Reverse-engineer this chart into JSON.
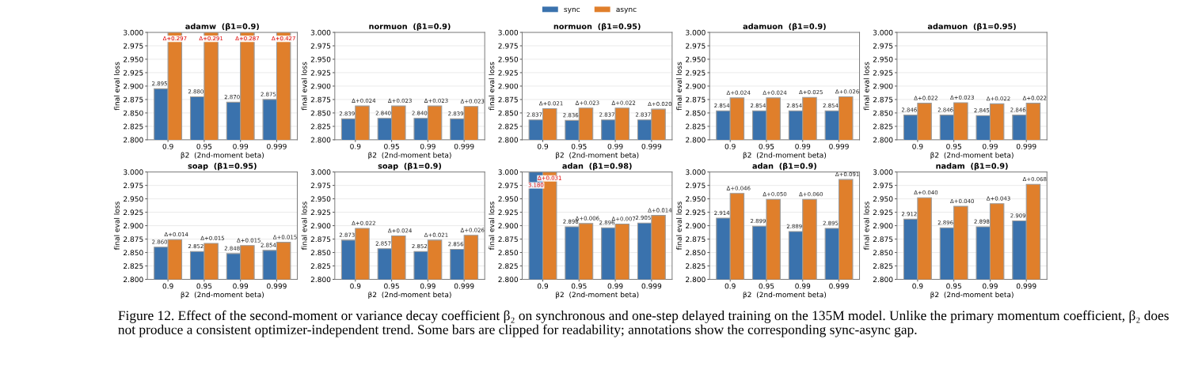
{
  "chart_data": [
    {
      "type": "bar",
      "title": "adamw  (β1=0.9)",
      "xlabel": "β2  (2nd-moment beta)",
      "ylabel": "final eval loss",
      "categories": [
        "0.9",
        "0.95",
        "0.99",
        "0.999"
      ],
      "legend": "top",
      "grid": "y",
      "ylim": [
        2.8,
        3.0
      ],
      "yticks": [
        {
          "value": 2.8,
          "label": "2.800"
        },
        {
          "value": 2.825,
          "label": "2.825"
        },
        {
          "value": 2.85,
          "label": "2.850"
        },
        {
          "value": 2.875,
          "label": "2.875"
        },
        {
          "value": 2.9,
          "label": "2.900"
        },
        {
          "value": 2.925,
          "label": "2.925"
        },
        {
          "value": 2.95,
          "label": "2.950"
        },
        {
          "value": 2.975,
          "label": "2.975"
        },
        {
          "value": 3.0,
          "label": "3.000"
        }
      ],
      "series": [
        {
          "name": "sync",
          "color": "#3a72ad",
          "values": [
            2.895,
            2.88,
            2.87,
            2.875
          ],
          "value_labels": [
            "2.895",
            "2.880",
            "2.870",
            "2.875"
          ]
        },
        {
          "name": "async",
          "color": "#e07f2b",
          "values": [
            3.0,
            3.0,
            3.0,
            3.0
          ],
          "value_labels": [
            "Δ+0.297",
            "Δ+0.291",
            "Δ+0.287",
            "Δ+0.427"
          ]
        }
      ],
      "annotations": [
        "Figure 12. Effect of the second-moment or variance decay coefficient β₂ on synchronous and one-step delayed training on the 135M model. Unlike the primary momentum coefficient, β₂ does not produce a consistent optimizer-independent trend. Some bars are clipped for readability; annotations show the corresponding sync-async gap."
      ]
    },
    {
      "type": "bar",
      "title": "normuon  (β1=0.9)",
      "xlabel": "β2  (2nd-moment beta)",
      "ylabel": "final eval loss",
      "categories": [
        "0.9",
        "0.95",
        "0.99",
        "0.999"
      ],
      "grid": "y",
      "ylim": [
        2.8,
        3.0
      ],
      "yticks": [
        {
          "value": 2.8,
          "label": "2.800"
        },
        {
          "value": 2.825,
          "label": "2.825"
        },
        {
          "value": 2.85,
          "label": "2.850"
        },
        {
          "value": 2.875,
          "label": "2.875"
        },
        {
          "value": 2.9,
          "label": "2.900"
        },
        {
          "value": 2.925,
          "label": "2.925"
        },
        {
          "value": 2.95,
          "label": "2.950"
        },
        {
          "value": 2.975,
          "label": "2.975"
        },
        {
          "value": 3.0,
          "label": "3.000"
        }
      ],
      "series": [
        {
          "color": "#3a72ad",
          "values": [
            2.839,
            2.84,
            2.84,
            2.839
          ],
          "value_labels": [
            "2.839",
            "2.840",
            "2.840",
            "2.839"
          ]
        },
        {
          "color": "#e07f2b",
          "values": [
            2.863,
            2.863,
            2.863,
            2.862
          ],
          "value_labels": [
            "Δ+0.024",
            "Δ+0.023",
            "Δ+0.023",
            "Δ+0.023"
          ]
        }
      ]
    },
    {
      "type": "bar",
      "title": "normuon  (β1=0.95)",
      "xlabel": "β2  (2nd-moment beta)",
      "ylabel": "final eval loss",
      "categories": [
        "0.9",
        "0.95",
        "0.99",
        "0.999"
      ],
      "grid": "y",
      "ylim": [
        2.8,
        3.0
      ],
      "yticks": [
        {
          "value": 2.8,
          "label": "2.800"
        },
        {
          "value": 2.825,
          "label": "2.825"
        },
        {
          "value": 2.85,
          "label": "2.850"
        },
        {
          "value": 2.875,
          "label": "2.875"
        },
        {
          "value": 2.9,
          "label": "2.900"
        },
        {
          "value": 2.925,
          "label": "2.925"
        },
        {
          "value": 2.95,
          "label": "2.950"
        },
        {
          "value": 2.975,
          "label": "2.975"
        },
        {
          "value": 3.0,
          "label": "3.000"
        }
      ],
      "series": [
        {
          "color": "#3a72ad",
          "values": [
            2.837,
            2.836,
            2.837,
            2.837
          ],
          "value_labels": [
            "2.837",
            "2.836",
            "2.837",
            "2.837"
          ]
        },
        {
          "color": "#e07f2b",
          "values": [
            2.858,
            2.859,
            2.859,
            2.857
          ],
          "value_labels": [
            "Δ+0.021",
            "Δ+0.023",
            "Δ+0.022",
            "Δ+0.020"
          ]
        }
      ]
    },
    {
      "type": "bar",
      "title": "adamuon  (β1=0.9)",
      "xlabel": "β2  (2nd-moment beta)",
      "ylabel": "final eval loss",
      "categories": [
        "0.9",
        "0.95",
        "0.99",
        "0.999"
      ],
      "grid": "y",
      "ylim": [
        2.8,
        3.0
      ],
      "yticks": [
        {
          "value": 2.8,
          "label": "2.800"
        },
        {
          "value": 2.825,
          "label": "2.825"
        },
        {
          "value": 2.85,
          "label": "2.850"
        },
        {
          "value": 2.875,
          "label": "2.875"
        },
        {
          "value": 2.9,
          "label": "2.900"
        },
        {
          "value": 2.925,
          "label": "2.925"
        },
        {
          "value": 2.95,
          "label": "2.950"
        },
        {
          "value": 2.975,
          "label": "2.975"
        },
        {
          "value": 3.0,
          "label": "3.000"
        }
      ],
      "series": [
        {
          "color": "#3a72ad",
          "values": [
            2.854,
            2.854,
            2.854,
            2.854
          ],
          "value_labels": [
            "2.854",
            "2.854",
            "2.854",
            "2.854"
          ]
        },
        {
          "color": "#e07f2b",
          "values": [
            2.878,
            2.878,
            2.879,
            2.88
          ],
          "value_labels": [
            "Δ+0.024",
            "Δ+0.024",
            "Δ+0.025",
            "Δ+0.026"
          ]
        }
      ]
    },
    {
      "type": "bar",
      "title": "adamuon  (β1=0.95)",
      "xlabel": "β2  (2nd-moment beta)",
      "ylabel": "final eval loss",
      "categories": [
        "0.9",
        "0.95",
        "0.99",
        "0.999"
      ],
      "grid": "y",
      "ylim": [
        2.8,
        3.0
      ],
      "yticks": [
        {
          "value": 2.8,
          "label": "2.800"
        },
        {
          "value": 2.825,
          "label": "2.825"
        },
        {
          "value": 2.85,
          "label": "2.850"
        },
        {
          "value": 2.875,
          "label": "2.875"
        },
        {
          "value": 2.9,
          "label": "2.900"
        },
        {
          "value": 2.925,
          "label": "2.925"
        },
        {
          "value": 2.95,
          "label": "2.950"
        },
        {
          "value": 2.975,
          "label": "2.975"
        },
        {
          "value": 3.0,
          "label": "3.000"
        }
      ],
      "series": [
        {
          "color": "#3a72ad",
          "values": [
            2.846,
            2.846,
            2.845,
            2.846
          ],
          "value_labels": [
            "2.846",
            "2.846",
            "2.845",
            "2.846"
          ]
        },
        {
          "color": "#e07f2b",
          "values": [
            2.868,
            2.869,
            2.867,
            2.868
          ],
          "value_labels": [
            "Δ+0.022",
            "Δ+0.023",
            "Δ+0.022",
            "Δ+0.022"
          ]
        }
      ]
    },
    {
      "type": "bar",
      "title": "soap  (β1=0.95)",
      "xlabel": "β2  (2nd-moment beta)",
      "ylabel": "final eval loss",
      "categories": [
        "0.9",
        "0.95",
        "0.99",
        "0.999"
      ],
      "grid": "y",
      "ylim": [
        2.8,
        3.0
      ],
      "yticks": [
        {
          "value": 2.8,
          "label": "2.800"
        },
        {
          "value": 2.825,
          "label": "2.825"
        },
        {
          "value": 2.85,
          "label": "2.850"
        },
        {
          "value": 2.875,
          "label": "2.875"
        },
        {
          "value": 2.9,
          "label": "2.900"
        },
        {
          "value": 2.925,
          "label": "2.925"
        },
        {
          "value": 2.95,
          "label": "2.950"
        },
        {
          "value": 2.975,
          "label": "2.975"
        },
        {
          "value": 3.0,
          "label": "3.000"
        }
      ],
      "series": [
        {
          "color": "#3a72ad",
          "values": [
            2.86,
            2.852,
            2.848,
            2.854
          ],
          "value_labels": [
            "2.860",
            "2.852",
            "2.848",
            "2.854"
          ]
        },
        {
          "color": "#e07f2b",
          "values": [
            2.874,
            2.867,
            2.863,
            2.869
          ],
          "value_labels": [
            "Δ+0.014",
            "Δ+0.015",
            "Δ+0.015",
            "Δ+0.015"
          ]
        }
      ]
    },
    {
      "type": "bar",
      "title": "soap  (β1=0.9)",
      "xlabel": "β2  (2nd-moment beta)",
      "ylabel": "final eval loss",
      "categories": [
        "0.9",
        "0.95",
        "0.99",
        "0.999"
      ],
      "grid": "y",
      "ylim": [
        2.8,
        3.0
      ],
      "yticks": [
        {
          "value": 2.8,
          "label": "2.800"
        },
        {
          "value": 2.825,
          "label": "2.825"
        },
        {
          "value": 2.85,
          "label": "2.850"
        },
        {
          "value": 2.875,
          "label": "2.875"
        },
        {
          "value": 2.9,
          "label": "2.900"
        },
        {
          "value": 2.925,
          "label": "2.925"
        },
        {
          "value": 2.95,
          "label": "2.950"
        },
        {
          "value": 2.975,
          "label": "2.975"
        },
        {
          "value": 3.0,
          "label": "3.000"
        }
      ],
      "series": [
        {
          "color": "#3a72ad",
          "values": [
            2.873,
            2.857,
            2.852,
            2.856
          ],
          "value_labels": [
            "2.873",
            "2.857",
            "2.852",
            "2.856"
          ]
        },
        {
          "color": "#e07f2b",
          "values": [
            2.895,
            2.881,
            2.873,
            2.882
          ],
          "value_labels": [
            "Δ+0.022",
            "Δ+0.024",
            "Δ+0.021",
            "Δ+0.026"
          ]
        }
      ]
    },
    {
      "type": "bar",
      "title": "adan  (β1=0.98)",
      "xlabel": "β2  (2nd-moment beta)",
      "ylabel": "final eval loss",
      "categories": [
        "0.9",
        "0.95",
        "0.99",
        "0.999"
      ],
      "grid": "y",
      "ylim": [
        2.8,
        3.0
      ],
      "yticks": [
        {
          "value": 2.8,
          "label": "2.800"
        },
        {
          "value": 2.825,
          "label": "2.825"
        },
        {
          "value": 2.85,
          "label": "2.850"
        },
        {
          "value": 2.875,
          "label": "2.875"
        },
        {
          "value": 2.9,
          "label": "2.900"
        },
        {
          "value": 2.925,
          "label": "2.925"
        },
        {
          "value": 2.95,
          "label": "2.950"
        },
        {
          "value": 2.975,
          "label": "2.975"
        },
        {
          "value": 3.0,
          "label": "3.000"
        }
      ],
      "series": [
        {
          "color": "#3a72ad",
          "values": [
            3.0,
            2.898,
            2.896,
            2.905
          ],
          "value_labels": [
            null,
            "2.898",
            "2.896",
            "2.905"
          ]
        },
        {
          "color": "#e07f2b",
          "values": [
            3.0,
            2.904,
            2.903,
            2.919
          ],
          "value_labels": [
            "Δ+0.031",
            "Δ+0.006",
            "Δ+0.007",
            "Δ+0.014"
          ]
        }
      ],
      "annotations": [
        {
          "text": "3.180",
          "x": "0.9",
          "y": 3.0
        }
      ]
    },
    {
      "type": "bar",
      "title": "adan  (β1=0.9)",
      "xlabel": "β2  (2nd-moment beta)",
      "ylabel": "final eval loss",
      "categories": [
        "0.9",
        "0.95",
        "0.99",
        "0.999"
      ],
      "grid": "y",
      "ylim": [
        2.8,
        3.0
      ],
      "yticks": [
        {
          "value": 2.8,
          "label": "2.800"
        },
        {
          "value": 2.825,
          "label": "2.825"
        },
        {
          "value": 2.85,
          "label": "2.850"
        },
        {
          "value": 2.875,
          "label": "2.875"
        },
        {
          "value": 2.9,
          "label": "2.900"
        },
        {
          "value": 2.925,
          "label": "2.925"
        },
        {
          "value": 2.95,
          "label": "2.950"
        },
        {
          "value": 2.975,
          "label": "2.975"
        },
        {
          "value": 3.0,
          "label": "3.000"
        }
      ],
      "series": [
        {
          "color": "#3a72ad",
          "values": [
            2.914,
            2.899,
            2.889,
            2.895
          ],
          "value_labels": [
            "2.914",
            "2.899",
            "2.889",
            "2.895"
          ]
        },
        {
          "color": "#e07f2b",
          "values": [
            2.96,
            2.949,
            2.949,
            2.986
          ],
          "value_labels": [
            "Δ+0.046",
            "Δ+0.050",
            "Δ+0.060",
            "Δ+0.091"
          ]
        }
      ]
    },
    {
      "type": "bar",
      "title": "nadam  (β1=0.9)",
      "xlabel": "β2  (2nd-moment beta)",
      "ylabel": "final eval loss",
      "categories": [
        "0.9",
        "0.95",
        "0.99",
        "0.999"
      ],
      "grid": "y",
      "ylim": [
        2.8,
        3.0
      ],
      "yticks": [
        {
          "value": 2.8,
          "label": "2.800"
        },
        {
          "value": 2.825,
          "label": "2.825"
        },
        {
          "value": 2.85,
          "label": "2.850"
        },
        {
          "value": 2.875,
          "label": "2.875"
        },
        {
          "value": 2.9,
          "label": "2.900"
        },
        {
          "value": 2.925,
          "label": "2.925"
        },
        {
          "value": 2.95,
          "label": "2.950"
        },
        {
          "value": 2.975,
          "label": "2.975"
        },
        {
          "value": 3.0,
          "label": "3.000"
        }
      ],
      "series": [
        {
          "color": "#3a72ad",
          "values": [
            2.912,
            2.896,
            2.898,
            2.909
          ],
          "value_labels": [
            "2.912",
            "2.896",
            "2.898",
            "2.909"
          ]
        },
        {
          "color": "#e07f2b",
          "values": [
            2.952,
            2.936,
            2.941,
            2.977
          ],
          "value_labels": [
            "Δ+0.040",
            "Δ+0.040",
            "Δ+0.043",
            "Δ+0.068"
          ]
        }
      ]
    }
  ]
}
